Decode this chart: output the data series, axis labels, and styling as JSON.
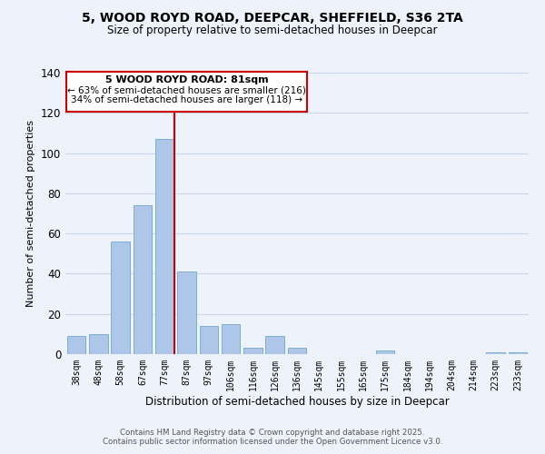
{
  "title": "5, WOOD ROYD ROAD, DEEPCAR, SHEFFIELD, S36 2TA",
  "subtitle": "Size of property relative to semi-detached houses in Deepcar",
  "xlabel": "Distribution of semi-detached houses by size in Deepcar",
  "ylabel": "Number of semi-detached properties",
  "categories": [
    "38sqm",
    "48sqm",
    "58sqm",
    "67sqm",
    "77sqm",
    "87sqm",
    "97sqm",
    "106sqm",
    "116sqm",
    "126sqm",
    "136sqm",
    "145sqm",
    "155sqm",
    "165sqm",
    "175sqm",
    "184sqm",
    "194sqm",
    "204sqm",
    "214sqm",
    "223sqm",
    "233sqm"
  ],
  "values": [
    9,
    10,
    56,
    74,
    107,
    41,
    14,
    15,
    3,
    9,
    3,
    0,
    0,
    0,
    2,
    0,
    0,
    0,
    0,
    1,
    1
  ],
  "bar_color": "#aec6e8",
  "bar_edge_color": "#7bafd4",
  "grid_color": "#c8d8ee",
  "background_color": "#eef2fa",
  "vline_color": "#cc0000",
  "annotation_title": "5 WOOD ROYD ROAD: 81sqm",
  "annotation_line1": "← 63% of semi-detached houses are smaller (216)",
  "annotation_line2": "34% of semi-detached houses are larger (118) →",
  "annotation_box_color": "#ffffff",
  "annotation_box_edge": "#cc0000",
  "ylim": [
    0,
    140
  ],
  "yticks": [
    0,
    20,
    40,
    60,
    80,
    100,
    120,
    140
  ],
  "footer1": "Contains HM Land Registry data © Crown copyright and database right 2025.",
  "footer2": "Contains public sector information licensed under the Open Government Licence v3.0."
}
